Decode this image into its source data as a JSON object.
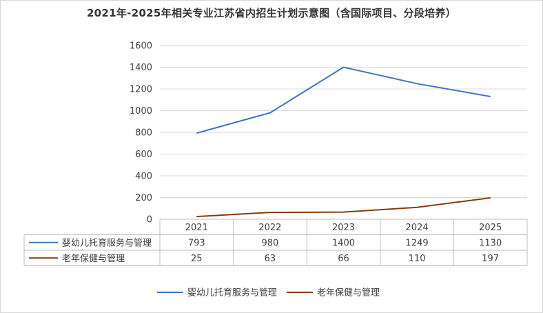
{
  "chart_data": {
    "type": "line",
    "title": "2021年-2025年相关专业江苏省内招生计划示意图（含国际项目、分段培养）",
    "categories": [
      "2021",
      "2022",
      "2023",
      "2024",
      "2025"
    ],
    "series": [
      {
        "name": "婴幼儿托育服务与管理",
        "color": "#4472c4",
        "values": [
          793,
          980,
          1400,
          1249,
          1130
        ]
      },
      {
        "name": "老年保健与管理",
        "color": "#843c0c",
        "values": [
          25,
          63,
          66,
          110,
          197
        ]
      }
    ],
    "yticks": [
      "0",
      "200",
      "400",
      "600",
      "800",
      "1000",
      "1200",
      "1400",
      "1600"
    ],
    "ylim": [
      0,
      1600
    ],
    "grid": true,
    "data_table": true,
    "legend": "bottom"
  }
}
